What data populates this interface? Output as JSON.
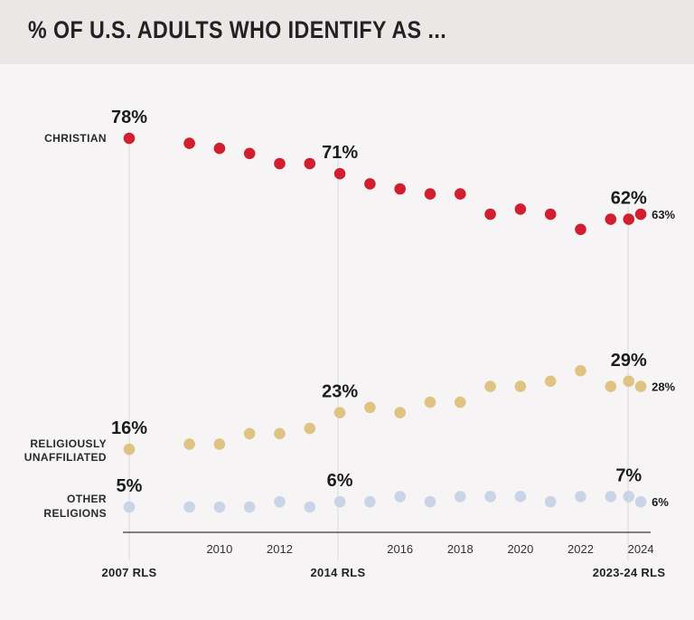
{
  "title": "% OF U.S. ADULTS WHO IDENTIFY AS ...",
  "chart_data": {
    "type": "scatter",
    "title": "% OF U.S. ADULTS WHO IDENTIFY AS ...",
    "xlim": [
      2007,
      2024.5
    ],
    "x": [
      2007,
      2009,
      2010,
      2011,
      2012,
      2013,
      2014,
      2015,
      2016,
      2017,
      2018,
      2019,
      2020,
      2021,
      2022,
      2023,
      2023.6,
      2024
    ],
    "series": [
      {
        "name": "CHRISTIAN",
        "color": "#d11f2f",
        "values": [
          78,
          77,
          76,
          75,
          73,
          73,
          71,
          69,
          68,
          67,
          67,
          63,
          64,
          63,
          60,
          62,
          62,
          63
        ],
        "callouts": [
          {
            "x": 2007,
            "text": "78%"
          },
          {
            "x": 2014,
            "text": "71%"
          },
          {
            "x": 2023.6,
            "text": "62%"
          }
        ],
        "end_label": "63%"
      },
      {
        "name": "RELIGIOUSLY UNAFFILIATED",
        "color": "#dfc382",
        "values": [
          16,
          17,
          17,
          19,
          19,
          20,
          23,
          24,
          23,
          25,
          25,
          28,
          28,
          29,
          31,
          28,
          29,
          28
        ],
        "callouts": [
          {
            "x": 2007,
            "text": "16%"
          },
          {
            "x": 2014,
            "text": "23%"
          },
          {
            "x": 2023.6,
            "text": "29%"
          }
        ],
        "end_label": "28%"
      },
      {
        "name": "OTHER RELIGIONS",
        "color": "#c9d5e6",
        "values": [
          5,
          5,
          5,
          5,
          6,
          5,
          6,
          6,
          7,
          6,
          7,
          7,
          7,
          6,
          7,
          7,
          7,
          6
        ],
        "callouts": [
          {
            "x": 2007,
            "text": "5%"
          },
          {
            "x": 2014,
            "text": "6%"
          },
          {
            "x": 2023.6,
            "text": "7%"
          }
        ],
        "end_label": "6%"
      }
    ],
    "series_labels": {
      "christian": [
        "CHRISTIAN"
      ],
      "unaffiliated": [
        "RELIGIOUSLY",
        "UNAFFILIATED"
      ],
      "other": [
        "OTHER",
        "RELIGIONS"
      ]
    },
    "year_ticks": [
      "2010",
      "2012",
      "2016",
      "2018",
      "2020",
      "2022",
      "2024"
    ],
    "rls_labels": {
      "rls2007": "2007 RLS",
      "rls2014": "2014 RLS",
      "rls2024": "2023-24 RLS"
    }
  }
}
